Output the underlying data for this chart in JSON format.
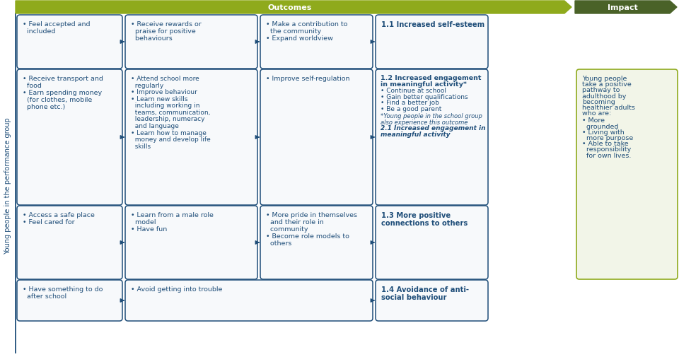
{
  "bg_color": "#ffffff",
  "outcomes_arrow_color": "#8faa1c",
  "impact_arrow_color": "#4a6228",
  "box_border_color": "#1f4e79",
  "box_fill_color": "#f7f9fb",
  "impact_box_fill": "#f2f5e8",
  "impact_box_border": "#8faa1c",
  "text_color": "#1f4e79",
  "side_label": "Young people in the performance group",
  "outcomes_label": "Outcomes",
  "impact_label": "Impact",
  "figw": 9.6,
  "figh": 5.06,
  "dpi": 100
}
